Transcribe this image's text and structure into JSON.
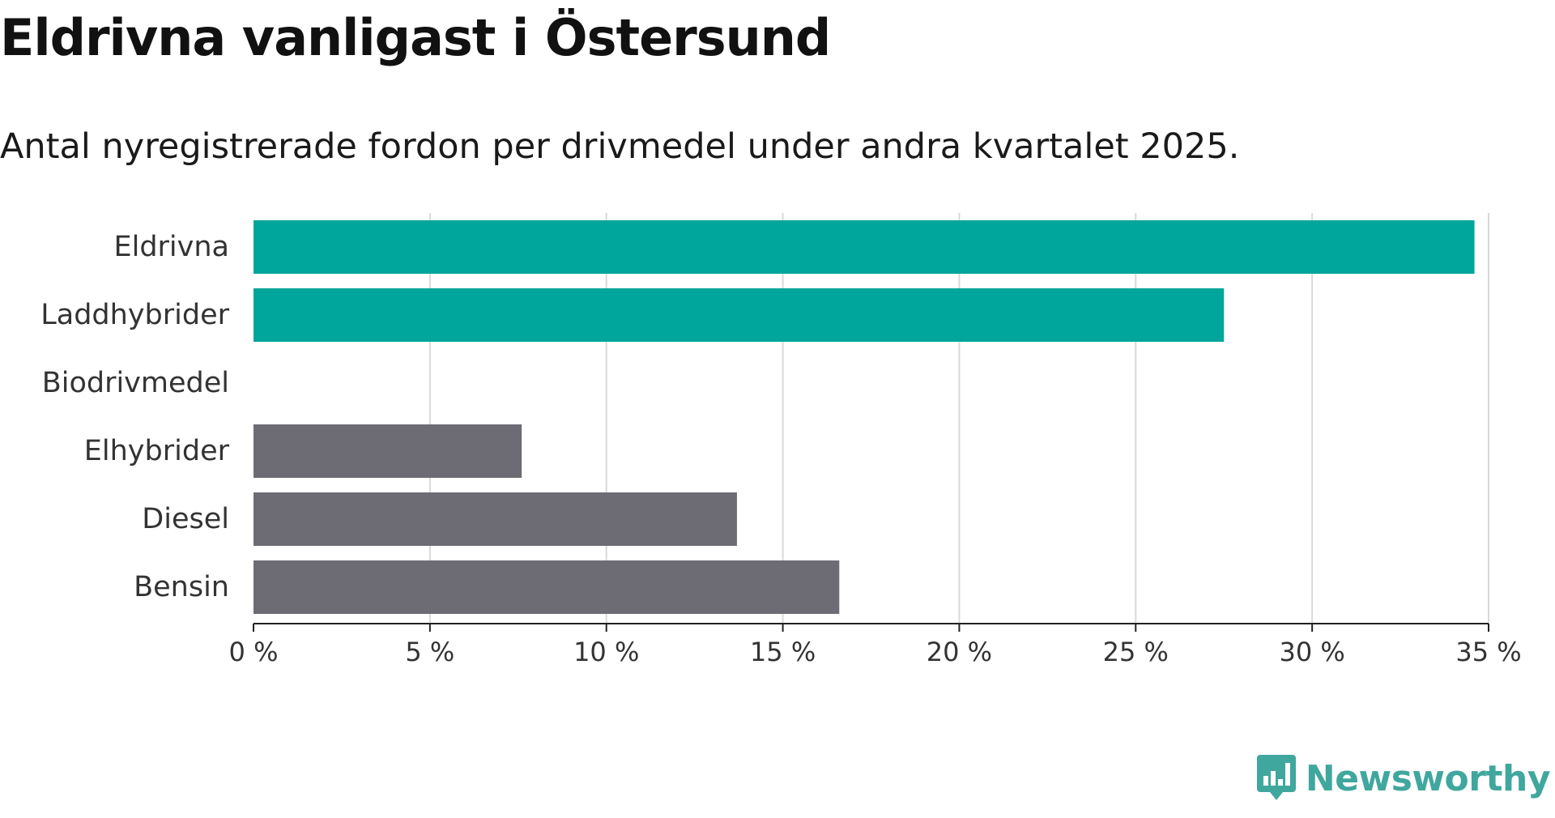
{
  "title": "Eldrivna vanligast i Östersund",
  "subtitle": "Antal nyregistrerade fordon per drivmedel under andra kvartalet 2025.",
  "brand": {
    "name": "Newsworthy",
    "logo_icon": "bar-chart-speech-bubble-icon",
    "color": "#3fa79e"
  },
  "colors": {
    "highlight": "#00a59b",
    "other": "#6d6c74",
    "grid": "#d9d9d9",
    "axis": "#222222"
  },
  "chart_data": {
    "type": "bar",
    "orientation": "horizontal",
    "categories": [
      "Eldrivna",
      "Laddhybrider",
      "Biodrivmedel",
      "Elhybrider",
      "Diesel",
      "Bensin"
    ],
    "values": [
      34.6,
      27.5,
      0,
      7.6,
      13.7,
      16.6
    ],
    "bar_colors": [
      "#00a59b",
      "#00a59b",
      "#00a59b",
      "#6d6c74",
      "#6d6c74",
      "#6d6c74"
    ],
    "xlim": [
      0,
      35
    ],
    "xticks": [
      0,
      5,
      10,
      15,
      20,
      25,
      30,
      35
    ],
    "xtick_labels": [
      "0 %",
      "5 %",
      "10 %",
      "15 %",
      "20 %",
      "25 %",
      "30 %",
      "35 %"
    ],
    "xlabel": "",
    "ylabel": "",
    "unit": "%",
    "grid": "vertical"
  }
}
